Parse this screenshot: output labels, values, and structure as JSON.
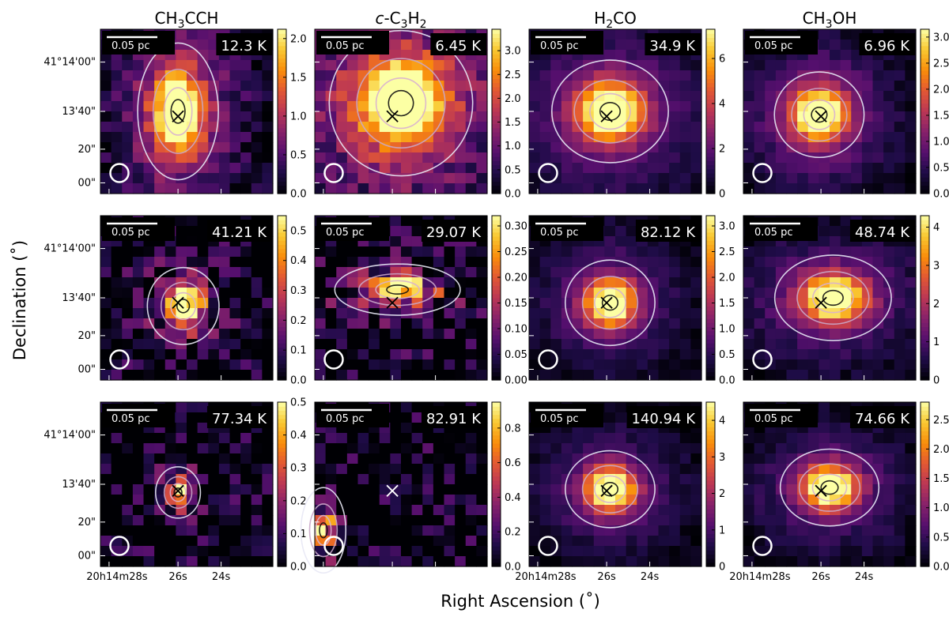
{
  "figure": {
    "xlabel": "Right Ascension (˚)",
    "ylabel": "Declination (˚)"
  },
  "columns": [
    {
      "title_main": "CH",
      "title_sub": "3",
      "title_tail": "CCH",
      "title_italic": "",
      "title_main2": "",
      "title_sub2": ""
    },
    {
      "title_italic": "c",
      "title_main": "-C",
      "title_sub": "3",
      "title_tail": "H",
      "title_sub2": "2"
    },
    {
      "title_main": "H",
      "title_sub": "2",
      "title_tail": "CO",
      "title_italic": "",
      "title_sub2": ""
    },
    {
      "title_main": "CH",
      "title_sub": "3",
      "title_tail": "OH",
      "title_italic": "",
      "title_sub2": ""
    }
  ],
  "axes": {
    "dec_ticks": [
      "41°14'00\"",
      "13'40\"",
      "20\"",
      "00\""
    ],
    "ra_ticks": [
      "20h14m28s",
      "26s",
      "24s"
    ],
    "scalebar_label": "0.05 pc"
  },
  "chart_data": [
    {
      "type": "heatmap",
      "row": 0,
      "col": 0,
      "molecule": "CH3CCH",
      "temperature_label": "12.3 K",
      "colorbar": {
        "min": 0,
        "max": 2.12,
        "ticks": [
          "0.0",
          "0.5",
          "1.0",
          "1.5",
          "2.0"
        ],
        "tick_values": [
          0,
          0.5,
          1.0,
          1.5,
          2.0
        ]
      },
      "peak": [
        0.45,
        0.5
      ],
      "sigma": [
        0.09,
        0.16
      ],
      "halo": 0.45,
      "noise": 0.12,
      "seed": 11,
      "colormap": "inferno",
      "marker_color": "#000000"
    },
    {
      "type": "heatmap",
      "row": 0,
      "col": 1,
      "molecule": "c-C3H2",
      "temperature_label": "6.45 K",
      "colorbar": {
        "min": 0,
        "max": 3.45,
        "ticks": [
          "0.0",
          "0.5",
          "1.0",
          "1.5",
          "2.0",
          "2.5",
          "3.0"
        ],
        "tick_values": [
          0,
          0.5,
          1.0,
          1.5,
          2.0,
          2.5,
          3.0
        ]
      },
      "peak": [
        0.5,
        0.45
      ],
      "sigma": [
        0.16,
        0.17
      ],
      "halo": 0.5,
      "noise": 0.15,
      "seed": 23,
      "colormap": "inferno",
      "marker_color": "#000000"
    },
    {
      "type": "heatmap",
      "row": 0,
      "col": 2,
      "molecule": "H2CO",
      "temperature_label": "34.9 K",
      "colorbar": {
        "min": 0,
        "max": 7.3,
        "ticks": [
          "0",
          "2",
          "4",
          "6"
        ],
        "tick_values": [
          0,
          2,
          4,
          6
        ]
      },
      "peak": [
        0.47,
        0.5
      ],
      "sigma": [
        0.13,
        0.12
      ],
      "halo": 0.35,
      "noise": 0.05,
      "seed": 37,
      "colormap": "inferno",
      "marker_color": "#000000"
    },
    {
      "type": "heatmap",
      "row": 0,
      "col": 3,
      "molecule": "CH3OH",
      "temperature_label": "6.96 K",
      "colorbar": {
        "min": 0,
        "max": 3.15,
        "ticks": [
          "0.0",
          "0.5",
          "1.0",
          "1.5",
          "2.0",
          "2.5",
          "3.0"
        ],
        "tick_values": [
          0,
          0.5,
          1.0,
          1.5,
          2.0,
          2.5,
          3.0
        ]
      },
      "peak": [
        0.44,
        0.52
      ],
      "sigma": [
        0.1,
        0.1
      ],
      "halo": 0.4,
      "noise": 0.06,
      "seed": 41,
      "colormap": "inferno",
      "marker_color": "#000000"
    },
    {
      "type": "heatmap",
      "row": 1,
      "col": 0,
      "molecule": "CH3CCH",
      "temperature_label": "41.21 K",
      "colorbar": {
        "min": 0,
        "max": 0.55,
        "ticks": [
          "0.0",
          "0.1",
          "0.2",
          "0.3",
          "0.4",
          "0.5"
        ],
        "tick_values": [
          0,
          0.1,
          0.2,
          0.3,
          0.4,
          0.5
        ]
      },
      "peak": [
        0.48,
        0.55
      ],
      "sigma": [
        0.08,
        0.09
      ],
      "halo": 0.25,
      "noise": 0.25,
      "seed": 53,
      "colormap": "inferno",
      "marker_color": "#000000"
    },
    {
      "type": "heatmap",
      "row": 1,
      "col": 1,
      "molecule": "c-C3H2",
      "temperature_label": "29.07 K",
      "colorbar": {
        "min": 0,
        "max": 0.32,
        "ticks": [
          "0.00",
          "0.05",
          "0.10",
          "0.15",
          "0.20",
          "0.25",
          "0.30"
        ],
        "tick_values": [
          0,
          0.05,
          0.1,
          0.15,
          0.2,
          0.25,
          0.3
        ]
      },
      "peak": [
        0.48,
        0.45
      ],
      "sigma": [
        0.14,
        0.06
      ],
      "halo": 0.2,
      "noise": 0.3,
      "seed": 67,
      "colormap": "inferno",
      "marker_color": "#000000"
    },
    {
      "type": "heatmap",
      "row": 1,
      "col": 2,
      "molecule": "H2CO",
      "temperature_label": "82.12 K",
      "colorbar": {
        "min": 0,
        "max": 3.2,
        "ticks": [
          "0.0",
          "0.5",
          "1.0",
          "1.5",
          "2.0",
          "2.5",
          "3.0"
        ],
        "tick_values": [
          0,
          0.5,
          1.0,
          1.5,
          2.0,
          2.5,
          3.0
        ]
      },
      "peak": [
        0.47,
        0.53
      ],
      "sigma": [
        0.1,
        0.1
      ],
      "halo": 0.3,
      "noise": 0.05,
      "seed": 71,
      "colormap": "inferno",
      "marker_color": "#000000"
    },
    {
      "type": "heatmap",
      "row": 1,
      "col": 3,
      "molecule": "CH3OH",
      "temperature_label": "48.74 K",
      "colorbar": {
        "min": 0,
        "max": 4.3,
        "ticks": [
          "0",
          "1",
          "2",
          "3",
          "4"
        ],
        "tick_values": [
          0,
          1,
          2,
          3,
          4
        ]
      },
      "peak": [
        0.52,
        0.5
      ],
      "sigma": [
        0.13,
        0.1
      ],
      "halo": 0.3,
      "noise": 0.06,
      "seed": 83,
      "colormap": "inferno",
      "marker_color": "#000000"
    },
    {
      "type": "heatmap",
      "row": 2,
      "col": 0,
      "molecule": "CH3CCH",
      "temperature_label": "77.34 K",
      "colorbar": {
        "min": 0,
        "max": 0.5,
        "ticks": [
          "0.0",
          "0.1",
          "0.2",
          "0.3",
          "0.4",
          "0.5"
        ],
        "tick_values": [
          0,
          0.1,
          0.2,
          0.3,
          0.4,
          0.5
        ]
      },
      "peak": [
        0.45,
        0.55
      ],
      "sigma": [
        0.05,
        0.06
      ],
      "halo": 0.2,
      "noise": 0.28,
      "seed": 97,
      "colormap": "inferno",
      "marker_color": "#000000"
    },
    {
      "type": "heatmap",
      "row": 2,
      "col": 1,
      "molecule": "c-C3H2",
      "temperature_label": "82.91 K",
      "colorbar": {
        "min": 0,
        "max": 0.95,
        "ticks": [
          "0.0",
          "0.2",
          "0.4",
          "0.6",
          "0.8"
        ],
        "tick_values": [
          0,
          0.2,
          0.4,
          0.6,
          0.8
        ]
      },
      "peak": [
        0.05,
        0.78
      ],
      "sigma": [
        0.05,
        0.1
      ],
      "halo": 0.05,
      "noise": 0.3,
      "seed": 101,
      "colormap": "inferno",
      "marker_color": "#ffffff"
    },
    {
      "type": "heatmap",
      "row": 2,
      "col": 2,
      "molecule": "H2CO",
      "temperature_label": "140.94 K",
      "colorbar": {
        "min": 0,
        "max": 4.5,
        "ticks": [
          "0",
          "1",
          "2",
          "3",
          "4"
        ],
        "tick_values": [
          0,
          1,
          2,
          3,
          4
        ]
      },
      "peak": [
        0.47,
        0.53
      ],
      "sigma": [
        0.1,
        0.09
      ],
      "halo": 0.3,
      "noise": 0.05,
      "seed": 113,
      "colormap": "inferno",
      "marker_color": "#000000"
    },
    {
      "type": "heatmap",
      "row": 2,
      "col": 3,
      "molecule": "CH3OH",
      "temperature_label": "74.66 K",
      "colorbar": {
        "min": 0,
        "max": 2.8,
        "ticks": [
          "0.0",
          "0.5",
          "1.0",
          "1.5",
          "2.0",
          "2.5"
        ],
        "tick_values": [
          0,
          0.5,
          1.0,
          1.5,
          2.0,
          2.5
        ]
      },
      "peak": [
        0.5,
        0.52
      ],
      "sigma": [
        0.11,
        0.09
      ],
      "halo": 0.3,
      "noise": 0.06,
      "seed": 127,
      "colormap": "inferno",
      "marker_color": "#000000"
    }
  ]
}
